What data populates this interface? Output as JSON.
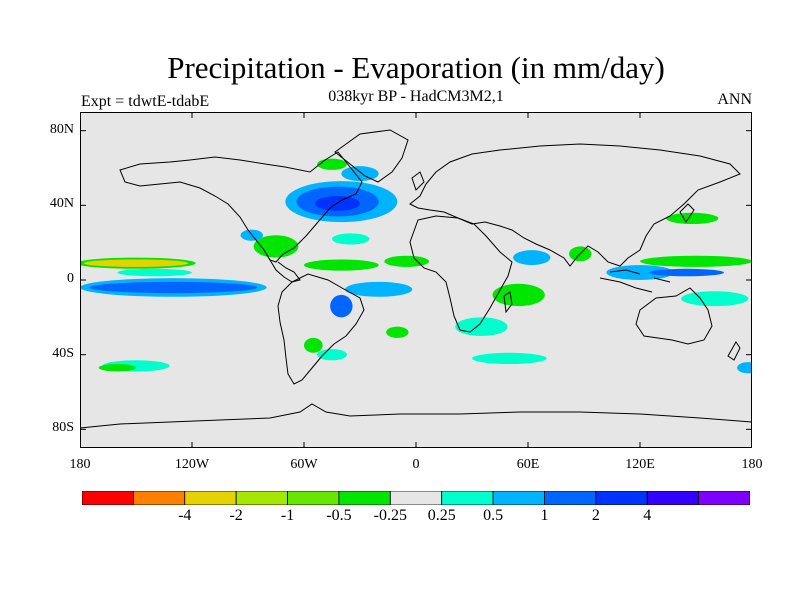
{
  "title": "Precipitation - Evaporation (in mm/day)",
  "subtitle": "038kyr BP - HadCM3M2,1",
  "experiment": "Expt = tdwtE-tdabE",
  "season": "ANN",
  "map": {
    "projection": "cylindrical equidistant",
    "lon_range": [
      -180,
      180
    ],
    "lat_range": [
      -90,
      90
    ],
    "background_color": "#e6e6e6",
    "lat_ticks": [
      {
        "lat": 80,
        "label": "80N"
      },
      {
        "lat": 40,
        "label": "40N"
      },
      {
        "lat": 0,
        "label": "0"
      },
      {
        "lat": -40,
        "label": "40S"
      },
      {
        "lat": -80,
        "label": "80S"
      }
    ],
    "lon_ticks": [
      {
        "lon": -180,
        "label": "180"
      },
      {
        "lon": -120,
        "label": "120W"
      },
      {
        "lon": -60,
        "label": "60W"
      },
      {
        "lon": 0,
        "label": "0"
      },
      {
        "lon": 60,
        "label": "60E"
      },
      {
        "lon": 120,
        "label": "120E"
      },
      {
        "lon": 180,
        "label": "180"
      }
    ]
  },
  "colorbar": {
    "colors": [
      "#ff0000",
      "#ff7f00",
      "#e6d200",
      "#a6e600",
      "#66e600",
      "#00e600",
      "#e6e6e6",
      "#00ffcc",
      "#00b3ff",
      "#0066ff",
      "#0033ff",
      "#3300ff",
      "#7f00ff"
    ],
    "labels": [
      "-4",
      "-2",
      "-1",
      "-0.5",
      "-0.25",
      "0.25",
      "0.5",
      "1",
      "2",
      "4"
    ]
  },
  "anomaly_regions": [
    {
      "name": "North Atlantic negative",
      "lon": -42,
      "lat": 41,
      "rlon": 12,
      "rlat": 4,
      "color": "#0033ff"
    },
    {
      "name": "North Atlantic ring",
      "lon": -42,
      "lat": 42,
      "rlon": 22,
      "rlat": 8,
      "color": "#0066ff"
    },
    {
      "name": "North Atlantic outer",
      "lon": -40,
      "lat": 42,
      "rlon": 30,
      "rlat": 11,
      "color": "#00b3ff"
    },
    {
      "name": "Greenland Sea",
      "lon": -30,
      "lat": 57,
      "rlon": 10,
      "rlat": 4,
      "color": "#00b3ff"
    },
    {
      "name": "Labrador",
      "lon": -45,
      "lat": 62,
      "rlon": 8,
      "rlat": 3,
      "color": "#00e600"
    },
    {
      "name": "North Pacific ITCZ band",
      "lon": -150,
      "lat": 9,
      "rlon": 32,
      "rlat": 3,
      "color": "#00e600"
    },
    {
      "name": "North Pacific ITCZ core",
      "lon": -150,
      "lat": 9,
      "rlon": 28,
      "rlat": 2,
      "color": "#e6d200"
    },
    {
      "name": "Equatorial Pacific negative",
      "lon": -130,
      "lat": -4,
      "rlon": 45,
      "rlat": 3,
      "color": "#0066ff"
    },
    {
      "name": "Equatorial Pacific outer",
      "lon": -130,
      "lat": -4,
      "rlon": 50,
      "rlat": 5,
      "color": "#00b3ff"
    },
    {
      "name": "Pacific north of equator",
      "lon": -140,
      "lat": 4,
      "rlon": 20,
      "rlat": 2,
      "color": "#00ffcc"
    },
    {
      "name": "Caribbean",
      "lon": -75,
      "lat": 18,
      "rlon": 12,
      "rlat": 6,
      "color": "#00e600"
    },
    {
      "name": "Gulf",
      "lon": -88,
      "lat": 24,
      "rlon": 6,
      "rlat": 3,
      "color": "#00b3ff"
    },
    {
      "name": "Atlantic ITCZ",
      "lon": -40,
      "lat": 8,
      "rlon": 20,
      "rlat": 3,
      "color": "#00e600"
    },
    {
      "name": "Tropical Atlantic",
      "lon": -35,
      "lat": 22,
      "rlon": 10,
      "rlat": 3,
      "color": "#00ffcc"
    },
    {
      "name": "South Atlantic negative",
      "lon": -20,
      "lat": -5,
      "rlon": 18,
      "rlat": 4,
      "color": "#00b3ff"
    },
    {
      "name": "Brazil coast",
      "lon": -40,
      "lat": -14,
      "rlon": 6,
      "rlat": 6,
      "color": "#0066ff"
    },
    {
      "name": "West Africa",
      "lon": -5,
      "lat": 10,
      "rlon": 12,
      "rlat": 3,
      "color": "#00e600"
    },
    {
      "name": "Southeast Atlantic",
      "lon": -10,
      "lat": -28,
      "rlon": 6,
      "rlat": 3,
      "color": "#00e600"
    },
    {
      "name": "South America SE",
      "lon": -55,
      "lat": -35,
      "rlon": 5,
      "rlat": 4,
      "color": "#00e600"
    },
    {
      "name": "Indian Ocean positive",
      "lon": 35,
      "lat": -25,
      "rlon": 14,
      "rlat": 5,
      "color": "#00ffcc"
    },
    {
      "name": "Indian Ocean negative",
      "lon": 55,
      "lat": -8,
      "rlon": 14,
      "rlat": 6,
      "color": "#00e600"
    },
    {
      "name": "Arabian Sea",
      "lon": 62,
      "lat": 12,
      "rlon": 10,
      "rlat": 4,
      "color": "#00b3ff"
    },
    {
      "name": "Bay of Bengal",
      "lon": 88,
      "lat": 14,
      "rlon": 6,
      "rlat": 4,
      "color": "#00e600"
    },
    {
      "name": "Maritime continent",
      "lon": 120,
      "lat": 4,
      "rlon": 18,
      "rlat": 4,
      "color": "#00b3ff"
    },
    {
      "name": "West Pacific band",
      "lon": 150,
      "lat": 10,
      "rlon": 30,
      "rlat": 3,
      "color": "#00e600"
    },
    {
      "name": "West Pacific negative",
      "lon": 145,
      "lat": 4,
      "rlon": 20,
      "rlat": 2,
      "color": "#0066ff"
    },
    {
      "name": "South Pacific convergence",
      "lon": 160,
      "lat": -10,
      "rlon": 18,
      "rlat": 4,
      "color": "#00ffcc"
    },
    {
      "name": "Kuroshio",
      "lon": 148,
      "lat": 33,
      "rlon": 14,
      "rlat": 3,
      "color": "#00e600"
    },
    {
      "name": "Southern Ocean band",
      "lon": -150,
      "lat": -46,
      "rlon": 18,
      "rlat": 3,
      "color": "#00ffcc"
    },
    {
      "name": "Southern Indian band",
      "lon": 50,
      "lat": -42,
      "rlon": 20,
      "rlat": 3,
      "color": "#00ffcc"
    },
    {
      "name": "Southern Atlantic band",
      "lon": -45,
      "lat": -40,
      "rlon": 8,
      "rlat": 3,
      "color": "#00ffcc"
    },
    {
      "name": "Southern Pacific east",
      "lon": 178,
      "lat": -47,
      "rlon": 6,
      "rlat": 3,
      "color": "#00b3ff"
    },
    {
      "name": "Southern Pacific green",
      "lon": -160,
      "lat": -47,
      "rlon": 10,
      "rlat": 2,
      "color": "#00e600"
    }
  ]
}
